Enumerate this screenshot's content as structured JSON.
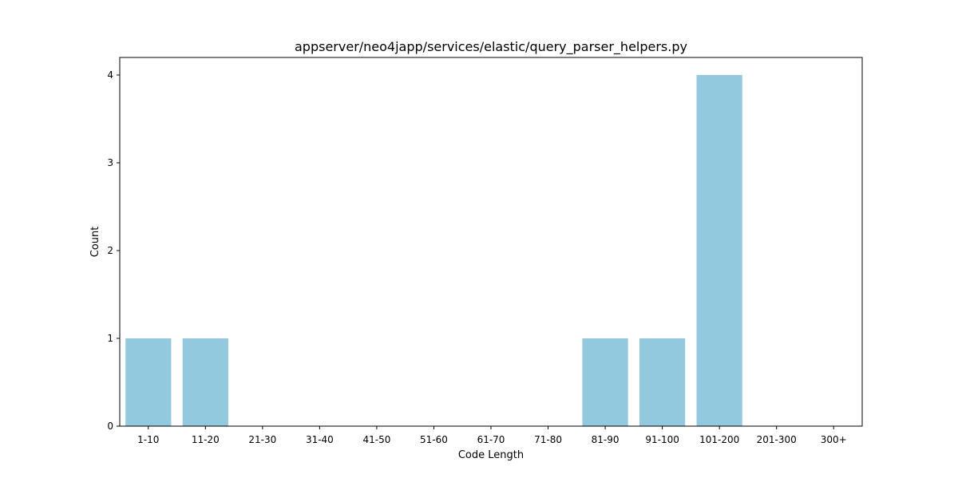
{
  "chart_data": {
    "type": "bar",
    "title": "appserver/neo4japp/services/elastic/query_parser_helpers.py",
    "xlabel": "Code Length",
    "ylabel": "Count",
    "categories": [
      "1-10",
      "11-20",
      "21-30",
      "31-40",
      "41-50",
      "51-60",
      "61-70",
      "71-80",
      "81-90",
      "91-100",
      "101-200",
      "201-300",
      "300+"
    ],
    "values": [
      1,
      1,
      0,
      0,
      0,
      0,
      0,
      0,
      1,
      1,
      4,
      0,
      0
    ],
    "yticks": [
      0,
      1,
      2,
      3,
      4
    ],
    "ylim": [
      0,
      4.2
    ],
    "grid": false,
    "bar_color": "#92c9de"
  }
}
